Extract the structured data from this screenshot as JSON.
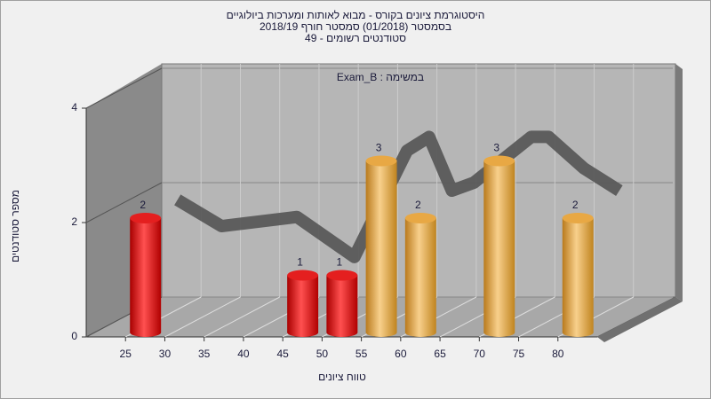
{
  "chart_data": {
    "type": "histogram",
    "title": [
      "היסטוגרמת ציונים בקורס - מבוא לאותות ומערכות ביולוגיים",
      "בסמסטר (01/2018) סמסטר חורף 2018/19",
      "סטודנטים רשומים - 49"
    ],
    "annotation": "במשימה : Exam_B",
    "xlabel": "טווח ציונים",
    "ylabel": "מספר סטודנטים",
    "bins": [
      25,
      30,
      35,
      40,
      45,
      50,
      55,
      60,
      65,
      70,
      75,
      80,
      85
    ],
    "counts": [
      2,
      0,
      0,
      0,
      1,
      1,
      3,
      2,
      0,
      3,
      0,
      2
    ],
    "colors": [
      "#e41f1f",
      "#e41f1f",
      "#e41f1f",
      "#e41f1f",
      "#e41f1f",
      "#e41f1f",
      "#e8a844",
      "#e8a844",
      "#e8a844",
      "#e8a844",
      "#e8a844",
      "#e8a844"
    ],
    "curve": {
      "color": "#5a5a5a",
      "x": [
        22,
        27.6,
        37.2,
        44.5,
        51.2,
        54,
        56.9,
        59.7,
        67,
        69.2,
        73.7,
        78.2
      ],
      "values": [
        1.7,
        1.24,
        1.4,
        0.7,
        2.56,
        2.8,
        1.86,
        2.0,
        2.8,
        2.8,
        2.25,
        1.86
      ]
    },
    "xlim": [
      20,
      85
    ],
    "xticks": [
      25,
      30,
      35,
      40,
      45,
      50,
      55,
      60,
      65,
      70,
      75,
      80
    ],
    "ylim": [
      0,
      4
    ],
    "yticks": [
      0,
      2,
      4
    ],
    "grid": true
  }
}
